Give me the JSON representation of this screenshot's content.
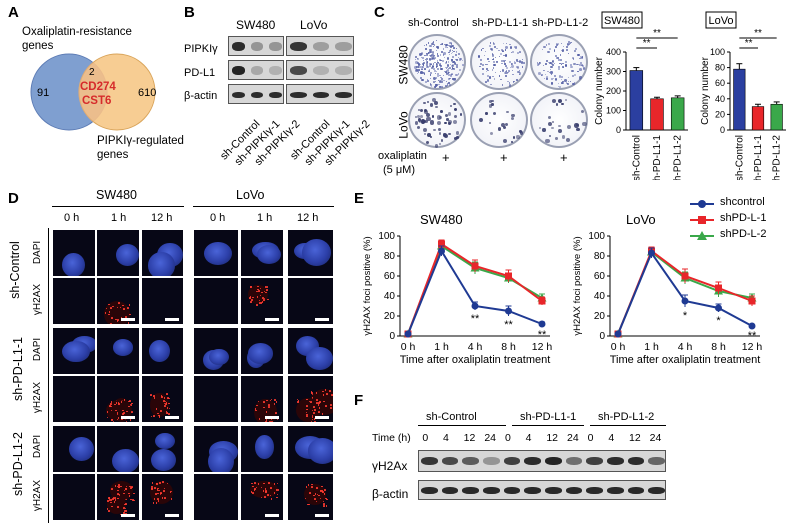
{
  "panel_labels": {
    "a": "A",
    "b": "B",
    "c": "C",
    "d": "D",
    "e": "E",
    "f": "F"
  },
  "panel_a": {
    "set1": "Oxaliplatin-resistance genes",
    "set1_line1": "Oxaliplatin-resistance",
    "set1_line2": "genes",
    "set2_line1": "PIPKIγ-regulated",
    "set2_line2": "genes",
    "left_only": "91",
    "overlap": "2",
    "right_only": "610",
    "genes": [
      "CD274",
      "CST6"
    ],
    "colors": {
      "left": "#7f9fd0",
      "right": "#f6c98a",
      "overlap_text": "#d62b2b"
    }
  },
  "panel_b": {
    "groups": [
      "SW480",
      "LoVo"
    ],
    "rows": [
      "PIPKIγ",
      "PD-L1",
      "β-actin"
    ],
    "lanes": [
      "sh-Control",
      "sh-PIPKIγ-1",
      "sh-PIPKIγ-2",
      "sh-Control",
      "sh-PIPKIγ-1",
      "sh-PIPKIγ-2"
    ]
  },
  "panel_c": {
    "dish_labels": [
      "sh-Control",
      "sh-PD-L1-1",
      "sh-PD-L1-2"
    ],
    "rows": [
      "SW480",
      "LoVo"
    ],
    "treatment": "oxaliplatin",
    "dose": "(5 μM)",
    "plus": "+"
  },
  "panel_d": {
    "groups": [
      "SW480",
      "LoVo"
    ],
    "times": [
      "0 h",
      "1 h",
      "12 h"
    ],
    "conditions": [
      "sh-Control",
      "sh-PD-L1-1",
      "sh-PD-L1-2"
    ],
    "stains": [
      "DAPI",
      "γH2AX"
    ]
  },
  "panel_e_legend": [
    "shcontrol",
    "shPD-L-1",
    "shPD-L-2"
  ],
  "panel_f": {
    "groups": [
      "sh-Control",
      "sh-PD-L1-1",
      "sh-PD-L1-2"
    ],
    "time_label": "Time (h)",
    "times": [
      "0",
      "4",
      "12",
      "24"
    ],
    "rows": [
      "γH2Ax",
      "β-actin"
    ]
  },
  "chart_data": [
    {
      "type": "bar",
      "title": "SW480",
      "categories": [
        "sh-Control",
        "sh-PD-L1-1",
        "sh-PD-L1-2"
      ],
      "values": [
        305,
        160,
        165
      ],
      "errors": [
        15,
        8,
        10
      ],
      "colors": [
        "#2b3fa0",
        "#e8262a",
        "#3aa84a"
      ],
      "ylabel": "Colony number",
      "ylim": [
        0,
        400
      ],
      "yticks": [
        "0",
        "100",
        "200",
        "300",
        "400"
      ],
      "significance": [
        "**",
        "**"
      ]
    },
    {
      "type": "bar",
      "title": "LoVo",
      "categories": [
        "sh-Control",
        "sh-PD-L1-1",
        "sh-PD-L1-2"
      ],
      "values": [
        78,
        30,
        33
      ],
      "errors": [
        7,
        3,
        3
      ],
      "colors": [
        "#2b3fa0",
        "#e8262a",
        "#3aa84a"
      ],
      "ylabel": "Colony number",
      "ylim": [
        0,
        100
      ],
      "yticks": [
        "0",
        "20",
        "40",
        "60",
        "80",
        "100"
      ],
      "significance": [
        "**",
        "**"
      ]
    },
    {
      "type": "line",
      "title": "SW480",
      "x": [
        "0 h",
        "1 h",
        "4 h",
        "8 h",
        "12 h"
      ],
      "series": [
        {
          "name": "shcontrol",
          "values": [
            2,
            85,
            30,
            25,
            12
          ],
          "errors": [
            0,
            5,
            4,
            5,
            2
          ],
          "color": "#1f3a93",
          "marker": "circle"
        },
        {
          "name": "shPD-L-1",
          "values": [
            2,
            92,
            70,
            60,
            35
          ],
          "errors": [
            0,
            4,
            6,
            6,
            4
          ],
          "color": "#e8262a",
          "marker": "square"
        },
        {
          "name": "shPD-L-2",
          "values": [
            2,
            90,
            68,
            58,
            38
          ],
          "errors": [
            0,
            4,
            6,
            5,
            4
          ],
          "color": "#3aa84a",
          "marker": "triangle"
        }
      ],
      "annotations": [
        "**",
        "**",
        "**"
      ],
      "ylabel": "γH2AX foci positive (%)",
      "xlabel": "Time after oxaliplatin treatment",
      "ylim": [
        0,
        100
      ],
      "yticks": [
        "0",
        "20",
        "40",
        "60",
        "80",
        "100"
      ]
    },
    {
      "type": "line",
      "title": "LoVo",
      "x": [
        "0 h",
        "1 h",
        "4 h",
        "8 h",
        "12 h"
      ],
      "series": [
        {
          "name": "shcontrol",
          "values": [
            2,
            83,
            35,
            28,
            10
          ],
          "errors": [
            0,
            5,
            6,
            4,
            1
          ],
          "color": "#1f3a93",
          "marker": "circle"
        },
        {
          "name": "shPD-L-1",
          "values": [
            2,
            85,
            60,
            48,
            35
          ],
          "errors": [
            0,
            4,
            7,
            6,
            5
          ],
          "color": "#e8262a",
          "marker": "square"
        },
        {
          "name": "shPD-L-2",
          "values": [
            2,
            84,
            58,
            45,
            38
          ],
          "errors": [
            0,
            4,
            6,
            6,
            4
          ],
          "color": "#3aa84a",
          "marker": "triangle"
        }
      ],
      "annotations": [
        "*",
        "*",
        "**"
      ],
      "ylabel": "γH2AX foci positive (%)",
      "xlabel": "Time after oxaliplatin treatment",
      "ylim": [
        0,
        100
      ],
      "yticks": [
        "0",
        "20",
        "40",
        "60",
        "80",
        "100"
      ]
    }
  ]
}
